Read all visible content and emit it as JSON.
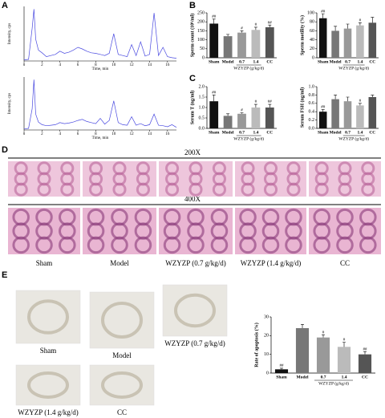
{
  "panel_labels": [
    "A",
    "B",
    "C",
    "D",
    "E"
  ],
  "chart_data": [
    {
      "type": "line",
      "ylabel": "Intensity, cps",
      "xlabel": "Time, min",
      "color": "#4a4ae0",
      "xlim": [
        0,
        17
      ],
      "ylim": [
        0,
        100
      ],
      "xticks": [
        0,
        2,
        4,
        6,
        8,
        10,
        12,
        14,
        16
      ],
      "x": [
        0,
        0.5,
        0.9,
        1.1,
        1.3,
        1.6,
        2,
        2.5,
        3,
        3.5,
        4,
        4.5,
        5,
        5.5,
        6,
        6.5,
        7,
        7.5,
        8,
        8.5,
        9,
        9.5,
        10,
        10.5,
        11,
        11.5,
        12,
        12.5,
        13,
        13.5,
        14,
        14.5,
        15,
        15.5,
        16,
        16.5,
        17
      ],
      "values": [
        2,
        3,
        60,
        95,
        40,
        20,
        15,
        8,
        10,
        12,
        18,
        14,
        16,
        20,
        25,
        22,
        18,
        15,
        14,
        12,
        10,
        14,
        50,
        12,
        10,
        8,
        30,
        10,
        35,
        9,
        12,
        88,
        10,
        25,
        8,
        6,
        5
      ]
    },
    {
      "type": "line",
      "ylabel": "Intensity, cps",
      "xlabel": "Time, min",
      "color": "#4a4ae0",
      "xlim": [
        0,
        17
      ],
      "ylim": [
        0,
        100
      ],
      "xticks": [
        0,
        2,
        4,
        6,
        8,
        10,
        12,
        14,
        16
      ],
      "x": [
        0,
        0.5,
        0.9,
        1.1,
        1.3,
        1.6,
        2,
        2.5,
        3,
        3.5,
        4,
        4.5,
        5,
        5.5,
        6,
        6.5,
        7,
        7.5,
        8,
        8.5,
        9,
        9.5,
        10,
        10.5,
        11,
        11.5,
        12,
        12.5,
        13,
        13.5,
        14,
        14.5,
        15,
        15.5,
        16,
        16.5,
        17
      ],
      "values": [
        2,
        3,
        40,
        95,
        30,
        15,
        10,
        8,
        9,
        10,
        14,
        12,
        13,
        15,
        18,
        20,
        16,
        14,
        12,
        22,
        11,
        18,
        55,
        14,
        10,
        9,
        25,
        9,
        12,
        8,
        10,
        30,
        9,
        8,
        6,
        10,
        5
      ]
    },
    {
      "type": "bar",
      "ylabel": "Sperm count (10⁶/ml)",
      "categories": [
        "Sham",
        "Model",
        "0.7",
        "1.4",
        "CC"
      ],
      "group_label": "WZYZP (g/kg/d)",
      "colors": [
        "#111111",
        "#777777",
        "#999999",
        "#bbbbbb",
        "#555555"
      ],
      "values": [
        190,
        120,
        140,
        155,
        170
      ],
      "errors": [
        25,
        10,
        10,
        15,
        12
      ],
      "significance": [
        "##",
        null,
        "#",
        "#",
        "##"
      ],
      "ylim": [
        0,
        250
      ],
      "yticks": [
        0,
        50,
        100,
        150,
        200,
        250
      ]
    },
    {
      "type": "bar",
      "ylabel": "Sperm motility (%)",
      "categories": [
        "Sham",
        "Model",
        "0.7",
        "1.4",
        "CC"
      ],
      "group_label": "WZYZP (g/kg/d)",
      "colors": [
        "#111111",
        "#777777",
        "#999999",
        "#bbbbbb",
        "#555555"
      ],
      "values": [
        88,
        60,
        65,
        72,
        78
      ],
      "errors": [
        10,
        10,
        10,
        6,
        12
      ],
      "significance": [
        "##",
        null,
        null,
        "#",
        null
      ],
      "ylim": [
        0,
        100
      ],
      "yticks": [
        0,
        20,
        40,
        60,
        80,
        100
      ]
    },
    {
      "type": "bar",
      "ylabel": "Serum T (ng/ml)",
      "categories": [
        "Sham",
        "Model",
        "0.7",
        "1.4",
        "CC"
      ],
      "group_label": "WZYZP (g/kg/d)",
      "colors": [
        "#111111",
        "#777777",
        "#999999",
        "#bbbbbb",
        "#555555"
      ],
      "values": [
        1.3,
        0.6,
        0.7,
        1.0,
        1.0
      ],
      "errors": [
        0.3,
        0.1,
        0.05,
        0.15,
        0.15
      ],
      "significance": [
        "##",
        null,
        "#",
        "#",
        "##"
      ],
      "ylim": [
        0,
        2.0
      ],
      "yticks": [
        {
          "value": 0,
          "label": "0.0"
        },
        {
          "value": 0.5,
          "label": "0.5"
        },
        {
          "value": 1,
          "label": "1.0"
        },
        {
          "value": 1.5,
          "label": "1.5"
        },
        {
          "value": 2,
          "label": "2.0"
        }
      ]
    },
    {
      "type": "bar",
      "ylabel": "Serum FSH (ng/ml)",
      "categories": [
        "Sham",
        "Model",
        "0.7",
        "1.4",
        "CC"
      ],
      "group_label": "WZYZP (g/kg/d)",
      "colors": [
        "#111111",
        "#777777",
        "#999999",
        "#bbbbbb",
        "#555555"
      ],
      "values": [
        0.4,
        0.7,
        0.65,
        0.55,
        0.75
      ],
      "errors": [
        0.05,
        0.1,
        0.1,
        0.05,
        0.05
      ],
      "significance": [
        "##",
        null,
        null,
        "#",
        null
      ],
      "ylim": [
        0,
        1.0
      ],
      "yticks": [
        {
          "value": 0,
          "label": "0.0"
        },
        {
          "value": 0.2,
          "label": "0.2"
        },
        {
          "value": 0.4,
          "label": "0.4"
        },
        {
          "value": 0.6,
          "label": "0.6"
        },
        {
          "value": 0.8,
          "label": "0.8"
        },
        {
          "value": 1,
          "label": "1.0"
        }
      ]
    },
    {
      "type": "bar",
      "ylabel": "Rate of apoptosis (%)",
      "categories": [
        "Sham",
        "Model",
        "0.7",
        "1.4",
        "CC"
      ],
      "group_label": "WZYZP (g/kg/d)",
      "colors": [
        "#111111",
        "#777777",
        "#999999",
        "#bbbbbb",
        "#555555"
      ],
      "values": [
        2,
        24,
        19,
        14,
        10
      ],
      "errors": [
        0.6,
        2,
        1.5,
        2.5,
        1.5
      ],
      "significance": [
        "##",
        null,
        "#",
        "#",
        "##"
      ],
      "ylim": [
        0,
        30
      ],
      "yticks": [
        0,
        10,
        20,
        30
      ]
    }
  ],
  "histology": {
    "magnifications": [
      "200X",
      "400X"
    ],
    "groups": [
      "Sham",
      "Model",
      "WZYZP (0.7 g/kg/d)",
      "WZYZP  (1.4 g/kg/d)",
      "CC"
    ]
  },
  "tunel": {
    "groups": [
      "Sham",
      "Model",
      "WZYZP (0.7 g/kg/d)",
      "WZYZP  (1.4 g/kg/d)",
      "CC"
    ]
  }
}
